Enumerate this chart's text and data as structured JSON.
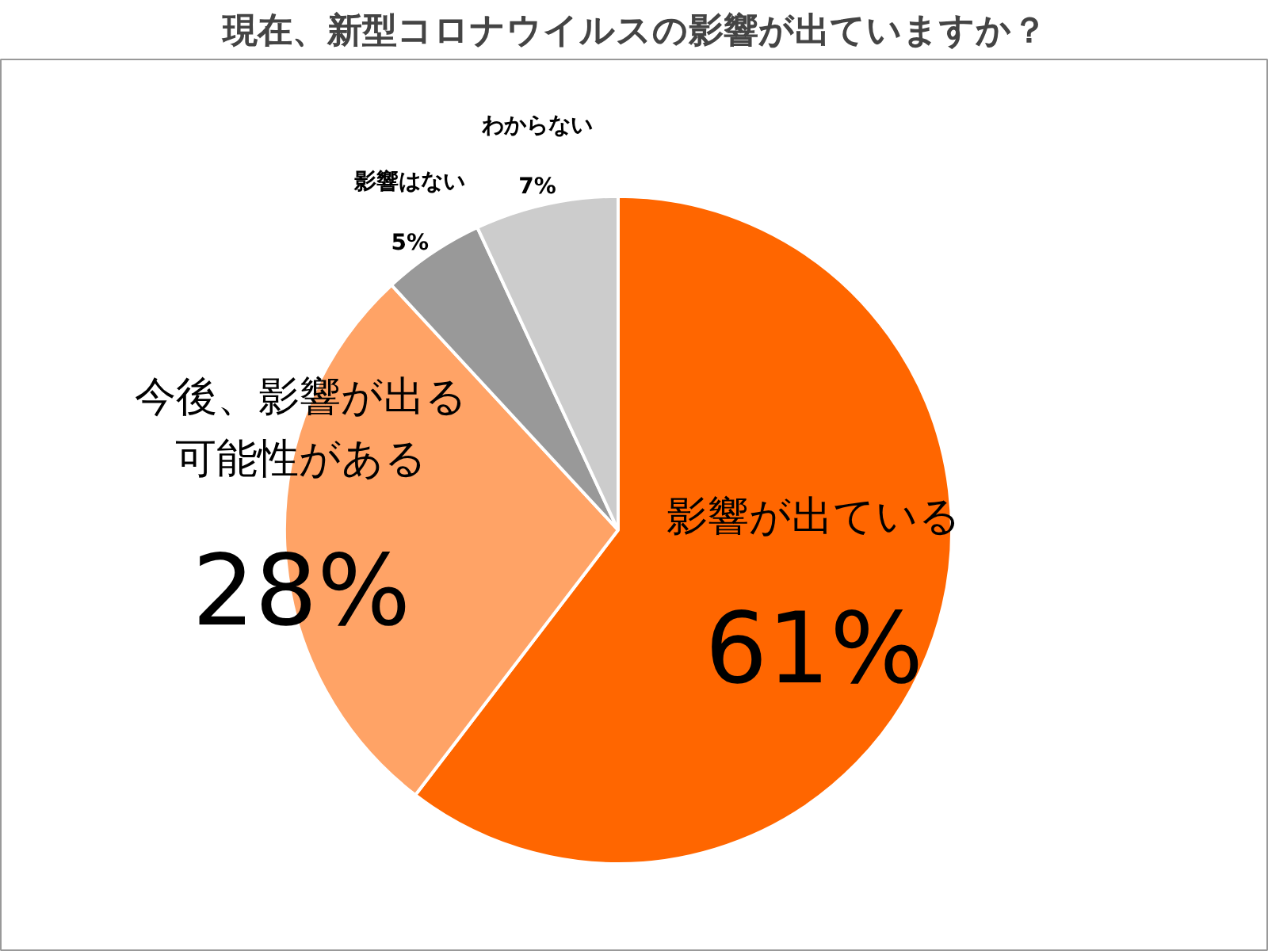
{
  "chart_data": {
    "type": "pie",
    "title": "現在、新型コロナウイルスの影響が出ていますか？",
    "categories": [
      "影響が出ている",
      "今後、影響が出る可能性がある",
      "影響はない",
      "わからない"
    ],
    "values": [
      61,
      28,
      5,
      7
    ],
    "value_labels": [
      "61%",
      "28%",
      "5%",
      "7%"
    ],
    "colors": [
      "#ff6600",
      "#ffa366",
      "#999999",
      "#cccccc"
    ]
  }
}
